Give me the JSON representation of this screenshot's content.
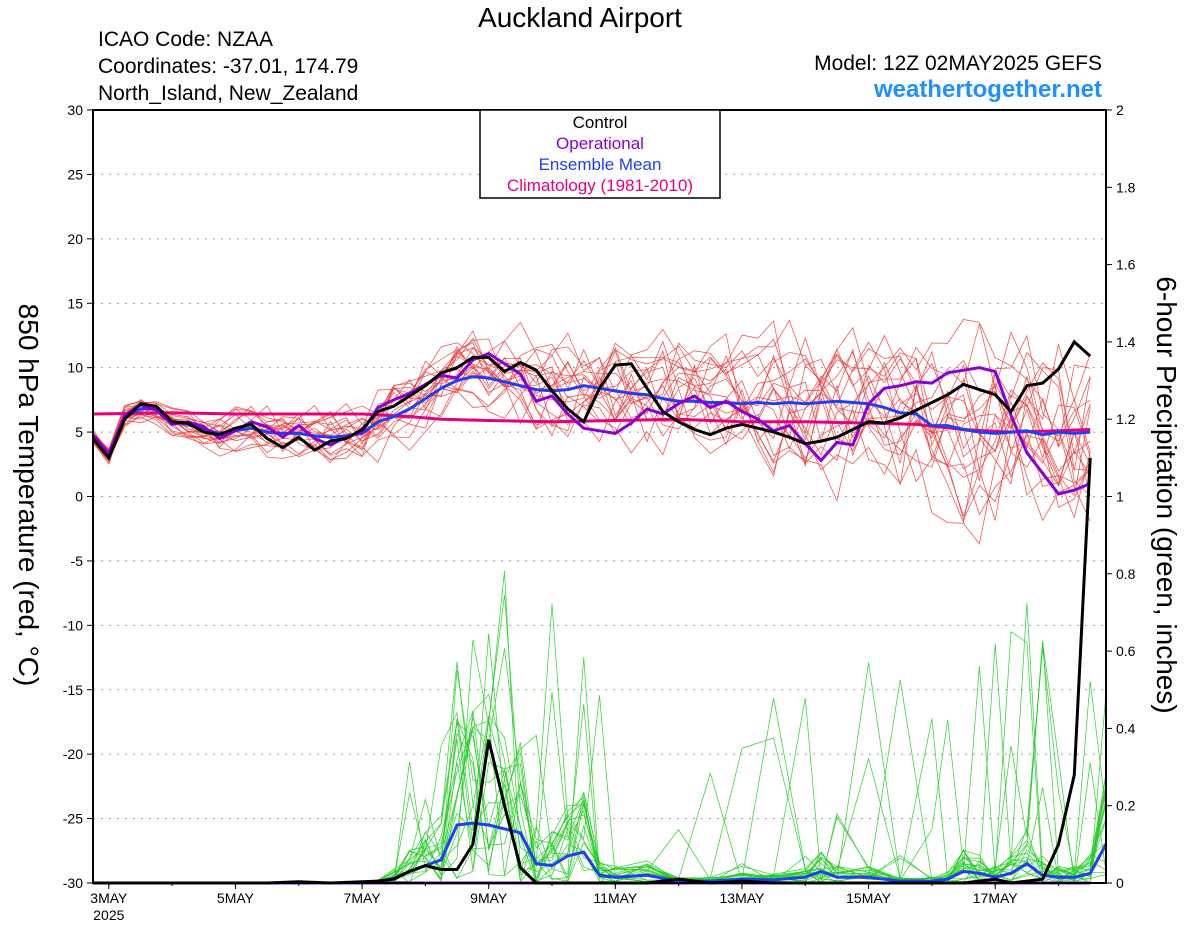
{
  "header": {
    "title": "Auckland Airport",
    "icao": "ICAO Code: NZAA",
    "coordinates": "Coordinates: -37.01, 174.79",
    "region": "North_Island, New_Zealand",
    "model": "Model: 12Z 02MAY2025 GEFS",
    "site": "weathertogether.net"
  },
  "colors": {
    "control": "#000000",
    "operational": "#8a00d4",
    "ensemble_mean": "#1f3ff0",
    "climatology": "#e6007e",
    "members_temp": "#f03c3c",
    "members_precip": "#22cc22",
    "site": "#1e90ff"
  },
  "chart_data": {
    "type": "line",
    "xlabel": "",
    "ylabel": "850 hPa Temperature (red, °C)",
    "y2label": "6-hour Precipitation (green, inches)",
    "xlim": [
      2.75,
      18.75
    ],
    "ylim": [
      -30,
      30
    ],
    "y2lim": [
      0,
      2
    ],
    "grid": true,
    "legend_position": "top-center",
    "legend": [
      "Control",
      "Operational",
      "Ensemble Mean",
      "Climatology (1981-2010)"
    ],
    "x_ticks": [
      {
        "x": 3,
        "label": "3MAY",
        "sublabel": "2025"
      },
      {
        "x": 5,
        "label": "5MAY",
        "sublabel": ""
      },
      {
        "x": 7,
        "label": "7MAY",
        "sublabel": ""
      },
      {
        "x": 9,
        "label": "9MAY",
        "sublabel": ""
      },
      {
        "x": 11,
        "label": "11MAY",
        "sublabel": ""
      },
      {
        "x": 13,
        "label": "13MAY",
        "sublabel": ""
      },
      {
        "x": 15,
        "label": "15MAY",
        "sublabel": ""
      },
      {
        "x": 17,
        "label": "17MAY",
        "sublabel": ""
      }
    ],
    "y_ticks": [
      "30",
      "25",
      "20",
      "15",
      "10",
      "5",
      "0",
      "-5",
      "-10",
      "-15",
      "-20",
      "-25",
      "-30"
    ],
    "y2_ticks": [
      "2",
      "1.8",
      "1.6",
      "1.4",
      "1.2",
      "1",
      "0.8",
      "0.6",
      "0.4",
      "0.2",
      "0"
    ],
    "temperature": {
      "control": [
        [
          2.75,
          4.5
        ],
        [
          3.0,
          3.0
        ],
        [
          3.25,
          6.0
        ],
        [
          3.5,
          7.2
        ],
        [
          3.75,
          7.0
        ],
        [
          4.0,
          5.8
        ],
        [
          4.25,
          5.7
        ],
        [
          4.5,
          5.0
        ],
        [
          4.75,
          4.8
        ],
        [
          5.0,
          5.3
        ],
        [
          5.25,
          5.6
        ],
        [
          5.5,
          4.5
        ],
        [
          5.75,
          3.8
        ],
        [
          6.0,
          4.6
        ],
        [
          6.25,
          3.6
        ],
        [
          6.5,
          4.3
        ],
        [
          6.75,
          4.5
        ],
        [
          7.0,
          5.2
        ],
        [
          7.25,
          6.6
        ],
        [
          7.5,
          7.0
        ],
        [
          7.75,
          7.8
        ],
        [
          8.0,
          8.6
        ],
        [
          8.25,
          9.6
        ],
        [
          8.5,
          10.0
        ],
        [
          8.75,
          10.8
        ],
        [
          9.0,
          10.8
        ],
        [
          9.25,
          9.7
        ],
        [
          9.5,
          10.4
        ],
        [
          9.75,
          9.8
        ],
        [
          10.0,
          8.2
        ],
        [
          10.25,
          6.8
        ],
        [
          10.5,
          5.8
        ],
        [
          10.75,
          8.4
        ],
        [
          11.0,
          10.2
        ],
        [
          11.25,
          10.3
        ],
        [
          11.5,
          8.4
        ],
        [
          11.75,
          6.6
        ],
        [
          12.0,
          5.8
        ],
        [
          12.25,
          5.2
        ],
        [
          12.5,
          4.8
        ],
        [
          12.75,
          5.3
        ],
        [
          13.0,
          5.6
        ],
        [
          13.25,
          5.3
        ],
        [
          13.5,
          5.0
        ],
        [
          13.75,
          4.6
        ],
        [
          14.0,
          4.1
        ],
        [
          14.25,
          4.3
        ],
        [
          14.5,
          4.6
        ],
        [
          14.75,
          5.2
        ],
        [
          15.0,
          5.8
        ],
        [
          15.25,
          5.7
        ],
        [
          15.5,
          6.1
        ],
        [
          15.75,
          6.7
        ],
        [
          16.0,
          7.3
        ],
        [
          16.25,
          7.9
        ],
        [
          16.5,
          8.7
        ],
        [
          16.75,
          8.3
        ],
        [
          17.0,
          7.9
        ],
        [
          17.25,
          6.6
        ],
        [
          17.5,
          8.6
        ],
        [
          17.75,
          8.8
        ],
        [
          18.0,
          9.9
        ],
        [
          18.25,
          12.0
        ],
        [
          18.5,
          10.9
        ]
      ],
      "operational": [
        [
          2.75,
          4.8
        ],
        [
          3.0,
          3.3
        ],
        [
          3.25,
          6.3
        ],
        [
          3.5,
          7.1
        ],
        [
          3.75,
          6.7
        ],
        [
          4.0,
          5.6
        ],
        [
          4.25,
          5.8
        ],
        [
          4.5,
          5.4
        ],
        [
          4.75,
          4.5
        ],
        [
          5.0,
          5.1
        ],
        [
          5.25,
          5.8
        ],
        [
          5.5,
          5.4
        ],
        [
          5.75,
          4.6
        ],
        [
          6.0,
          5.5
        ],
        [
          6.25,
          4.5
        ],
        [
          6.5,
          4.0
        ],
        [
          6.75,
          4.6
        ],
        [
          7.0,
          5.0
        ],
        [
          7.25,
          6.9
        ],
        [
          7.5,
          7.5
        ],
        [
          7.75,
          8.0
        ],
        [
          8.0,
          8.7
        ],
        [
          8.25,
          9.4
        ],
        [
          8.5,
          9.2
        ],
        [
          8.75,
          10.6
        ],
        [
          9.0,
          11.1
        ],
        [
          9.25,
          10.3
        ],
        [
          9.5,
          9.5
        ],
        [
          9.75,
          7.4
        ],
        [
          10.0,
          7.8
        ],
        [
          10.25,
          6.4
        ],
        [
          10.5,
          5.3
        ],
        [
          10.75,
          5.1
        ],
        [
          11.0,
          4.9
        ],
        [
          11.25,
          5.7
        ],
        [
          11.5,
          6.8
        ],
        [
          11.75,
          6.4
        ],
        [
          12.0,
          7.2
        ],
        [
          12.25,
          7.8
        ],
        [
          12.5,
          6.9
        ],
        [
          12.75,
          7.4
        ],
        [
          13.0,
          6.6
        ],
        [
          13.25,
          6.0
        ],
        [
          13.5,
          5.1
        ],
        [
          13.75,
          5.5
        ],
        [
          14.0,
          4.1
        ],
        [
          14.25,
          2.8
        ],
        [
          14.5,
          4.2
        ],
        [
          14.75,
          4.0
        ],
        [
          15.0,
          7.2
        ],
        [
          15.25,
          8.4
        ],
        [
          15.5,
          8.6
        ],
        [
          15.75,
          8.9
        ],
        [
          16.0,
          8.8
        ],
        [
          16.25,
          9.6
        ],
        [
          16.5,
          9.8
        ],
        [
          16.75,
          10.0
        ],
        [
          17.0,
          9.7
        ],
        [
          17.25,
          6.3
        ],
        [
          17.5,
          3.4
        ],
        [
          17.75,
          1.8
        ],
        [
          18.0,
          0.2
        ],
        [
          18.25,
          0.5
        ],
        [
          18.5,
          1.0
        ]
      ],
      "ensemble_mean": [
        [
          2.75,
          4.6
        ],
        [
          3.0,
          3.2
        ],
        [
          3.25,
          6.2
        ],
        [
          3.5,
          6.8
        ],
        [
          3.75,
          6.8
        ],
        [
          4.0,
          5.8
        ],
        [
          4.25,
          5.6
        ],
        [
          4.5,
          5.2
        ],
        [
          4.75,
          4.9
        ],
        [
          5.0,
          5.1
        ],
        [
          5.25,
          5.3
        ],
        [
          5.5,
          5.0
        ],
        [
          5.75,
          4.9
        ],
        [
          6.0,
          4.9
        ],
        [
          6.25,
          4.7
        ],
        [
          6.5,
          4.6
        ],
        [
          6.75,
          4.7
        ],
        [
          7.0,
          4.9
        ],
        [
          7.25,
          5.8
        ],
        [
          7.5,
          6.2
        ],
        [
          7.75,
          6.8
        ],
        [
          8.0,
          7.6
        ],
        [
          8.25,
          8.4
        ],
        [
          8.5,
          9.0
        ],
        [
          8.75,
          9.3
        ],
        [
          9.0,
          9.2
        ],
        [
          9.25,
          8.9
        ],
        [
          9.5,
          8.6
        ],
        [
          9.75,
          8.3
        ],
        [
          10.0,
          8.2
        ],
        [
          10.25,
          8.3
        ],
        [
          10.5,
          8.6
        ],
        [
          10.75,
          8.4
        ],
        [
          11.0,
          8.2
        ],
        [
          11.25,
          8.0
        ],
        [
          11.5,
          7.9
        ],
        [
          11.75,
          7.6
        ],
        [
          12.0,
          7.4
        ],
        [
          12.25,
          7.4
        ],
        [
          12.5,
          7.3
        ],
        [
          12.75,
          7.3
        ],
        [
          13.0,
          7.2
        ],
        [
          13.25,
          7.3
        ],
        [
          13.5,
          7.2
        ],
        [
          13.75,
          7.3
        ],
        [
          14.0,
          7.2
        ],
        [
          14.25,
          7.3
        ],
        [
          14.5,
          7.4
        ],
        [
          14.75,
          7.3
        ],
        [
          15.0,
          7.2
        ],
        [
          15.25,
          6.9
        ],
        [
          15.5,
          6.5
        ],
        [
          15.75,
          6.4
        ],
        [
          16.0,
          5.5
        ],
        [
          16.25,
          5.5
        ],
        [
          16.5,
          5.2
        ],
        [
          16.75,
          5.0
        ],
        [
          17.0,
          4.9
        ],
        [
          17.25,
          5.0
        ],
        [
          17.5,
          5.1
        ],
        [
          17.75,
          4.8
        ],
        [
          18.0,
          5.0
        ],
        [
          18.25,
          4.9
        ],
        [
          18.5,
          5.0
        ]
      ],
      "climatology": [
        [
          2.75,
          6.4
        ],
        [
          4.0,
          6.5
        ],
        [
          5.0,
          6.4
        ],
        [
          6.0,
          6.4
        ],
        [
          7.0,
          6.4
        ],
        [
          7.75,
          6.2
        ],
        [
          8.25,
          6.0
        ],
        [
          9.0,
          5.9
        ],
        [
          10.0,
          5.8
        ],
        [
          11.0,
          5.9
        ],
        [
          12.0,
          6.0
        ],
        [
          13.0,
          5.8
        ],
        [
          14.0,
          5.8
        ],
        [
          15.0,
          5.7
        ],
        [
          15.75,
          5.6
        ],
        [
          16.5,
          5.2
        ],
        [
          17.25,
          5.0
        ],
        [
          18.0,
          5.1
        ],
        [
          18.5,
          5.2
        ]
      ]
    },
    "temperature_members": 20,
    "precipitation": {
      "control": [
        [
          2.75,
          0
        ],
        [
          3.0,
          0
        ],
        [
          3.5,
          0
        ],
        [
          4.0,
          0
        ],
        [
          4.5,
          0
        ],
        [
          5.0,
          0
        ],
        [
          5.5,
          0
        ],
        [
          6.0,
          0.003
        ],
        [
          6.5,
          0
        ],
        [
          7.0,
          0.003
        ],
        [
          7.25,
          0.005
        ],
        [
          7.5,
          0.01
        ],
        [
          7.75,
          0.03
        ],
        [
          8.0,
          0.045
        ],
        [
          8.25,
          0.035
        ],
        [
          8.5,
          0.035
        ],
        [
          8.75,
          0.1
        ],
        [
          9.0,
          0.37
        ],
        [
          9.25,
          0.2
        ],
        [
          9.5,
          0.04
        ],
        [
          9.75,
          0
        ],
        [
          10.0,
          0
        ],
        [
          10.5,
          0
        ],
        [
          11.0,
          0
        ],
        [
          11.5,
          0
        ],
        [
          12.0,
          0.01
        ],
        [
          12.5,
          0
        ],
        [
          13.0,
          0.005
        ],
        [
          13.5,
          0
        ],
        [
          14.0,
          0
        ],
        [
          14.5,
          0
        ],
        [
          15.0,
          0
        ],
        [
          15.5,
          0
        ],
        [
          16.0,
          0
        ],
        [
          16.5,
          0
        ],
        [
          17.0,
          0.01
        ],
        [
          17.25,
          0
        ],
        [
          17.5,
          0.005
        ],
        [
          17.75,
          0.01
        ],
        [
          18.0,
          0.1
        ],
        [
          18.25,
          0.28
        ],
        [
          18.5,
          1.1
        ]
      ],
      "operational": [
        [
          2.75,
          0
        ],
        [
          18.5,
          0
        ]
      ],
      "ensemble_mean": [
        [
          2.75,
          0
        ],
        [
          3.0,
          0
        ],
        [
          3.5,
          0
        ],
        [
          4.0,
          0
        ],
        [
          4.5,
          0
        ],
        [
          5.0,
          0
        ],
        [
          5.5,
          0
        ],
        [
          6.0,
          0
        ],
        [
          6.5,
          0
        ],
        [
          7.0,
          0
        ],
        [
          7.25,
          0.003
        ],
        [
          7.5,
          0.012
        ],
        [
          7.75,
          0.03
        ],
        [
          8.0,
          0.045
        ],
        [
          8.25,
          0.06
        ],
        [
          8.5,
          0.15
        ],
        [
          8.75,
          0.155
        ],
        [
          9.0,
          0.15
        ],
        [
          9.25,
          0.14
        ],
        [
          9.5,
          0.13
        ],
        [
          9.75,
          0.05
        ],
        [
          10.0,
          0.045
        ],
        [
          10.25,
          0.07
        ],
        [
          10.5,
          0.08
        ],
        [
          10.75,
          0.02
        ],
        [
          11.0,
          0.015
        ],
        [
          11.5,
          0.02
        ],
        [
          12.0,
          0.005
        ],
        [
          12.5,
          0.005
        ],
        [
          13.0,
          0.01
        ],
        [
          13.5,
          0.008
        ],
        [
          14.0,
          0.015
        ],
        [
          14.25,
          0.03
        ],
        [
          14.5,
          0.015
        ],
        [
          15.0,
          0.015
        ],
        [
          15.5,
          0.005
        ],
        [
          16.0,
          0.005
        ],
        [
          16.25,
          0.01
        ],
        [
          16.5,
          0.03
        ],
        [
          16.75,
          0.025
        ],
        [
          17.0,
          0.015
        ],
        [
          17.25,
          0.025
        ],
        [
          17.5,
          0.05
        ],
        [
          17.75,
          0.02
        ],
        [
          18.0,
          0.015
        ],
        [
          18.25,
          0.015
        ],
        [
          18.5,
          0.025
        ],
        [
          18.75,
          0.1
        ]
      ]
    },
    "precipitation_members": 20
  }
}
